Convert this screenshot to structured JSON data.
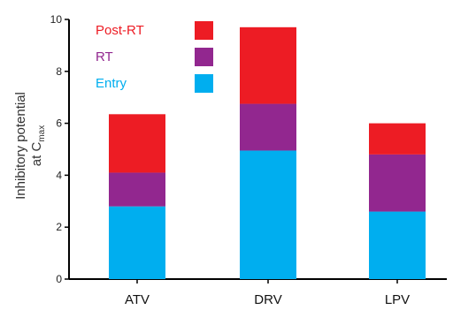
{
  "chart_data": {
    "type": "bar",
    "stacked": true,
    "categories": [
      "ATV",
      "DRV",
      "LPV"
    ],
    "series": [
      {
        "name": "Entry",
        "values": [
          2.8,
          4.95,
          2.6
        ],
        "color": "#00aeef"
      },
      {
        "name": "RT",
        "values": [
          1.3,
          1.8,
          2.2
        ],
        "color": "#92278f"
      },
      {
        "name": "Post-RT",
        "values": [
          2.25,
          2.95,
          1.2
        ],
        "color": "#ed1c24"
      }
    ],
    "ylabel": "Inhibitory potential",
    "ylabel_line2": "at C",
    "ylabel_subscript": "max",
    "ylim": [
      0,
      10
    ],
    "yticks": [
      0,
      2,
      4,
      6,
      8,
      10
    ],
    "grid": false,
    "legend_position": "top-left",
    "legend_order": [
      "Post-RT",
      "RT",
      "Entry"
    ]
  }
}
